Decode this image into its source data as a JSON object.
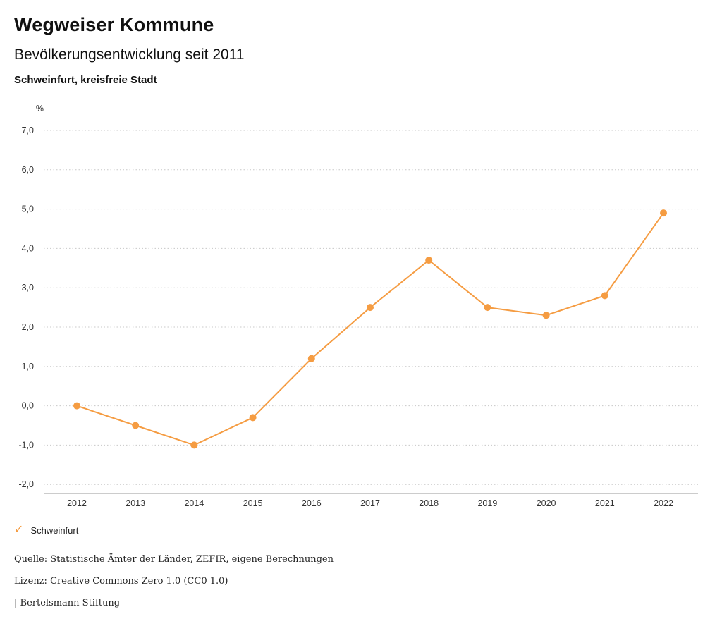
{
  "header": {
    "title": "Wegweiser Kommune",
    "subtitle": "Bevölkerungsentwicklung seit 2011",
    "region": "Schweinfurt, kreisfreie Stadt"
  },
  "chart_data": {
    "type": "line",
    "title": "Bevölkerungsentwicklung seit 2011",
    "unit_label": "%",
    "categories": [
      "2012",
      "2013",
      "2014",
      "2015",
      "2016",
      "2017",
      "2018",
      "2019",
      "2020",
      "2021",
      "2022"
    ],
    "series": [
      {
        "name": "Schweinfurt",
        "values": [
          0.0,
          -0.5,
          -1.0,
          -0.3,
          1.2,
          2.5,
          3.7,
          2.5,
          2.3,
          2.8,
          4.9
        ],
        "color": "#F59C42"
      }
    ],
    "ylim": [
      -2.0,
      7.0
    ],
    "ytick_step": 1.0,
    "ytick_labels": [
      "7,0",
      "6,0",
      "5,0",
      "4,0",
      "3,0",
      "2,0",
      "1,0",
      "0,0",
      "-1,0",
      "-2,0"
    ],
    "grid": "horizontal-dotted",
    "legend_position": "bottom-left"
  },
  "legend": {
    "items": [
      {
        "label": "Schweinfurt",
        "color": "#F59C42",
        "icon": "check-icon",
        "check_glyph": "✓"
      }
    ]
  },
  "footer": {
    "source": "Quelle: Statistische Ämter der Länder, ZEFIR, eigene Berechnungen",
    "license": "Lizenz: Creative Commons Zero 1.0 (CC0 1.0)",
    "publisher": "| Bertelsmann Stiftung"
  }
}
